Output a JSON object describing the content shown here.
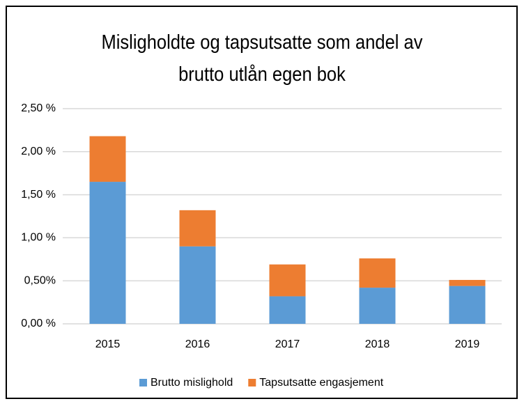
{
  "chart_data": {
    "type": "stacked_bar",
    "title": "Misligholdte og tapsutsatte som andel av brutto utlån egen bok",
    "categories": [
      "2015",
      "2016",
      "2017",
      "2018",
      "2019"
    ],
    "series": [
      {
        "name": "Brutto mislighold",
        "color": "#5b9bd5",
        "values": [
          1.65,
          0.9,
          0.32,
          0.42,
          0.44
        ]
      },
      {
        "name": "Tapsutsatte engasjement",
        "color": "#ed7d31",
        "values": [
          0.53,
          0.42,
          0.37,
          0.34,
          0.07
        ]
      }
    ],
    "ylim": [
      0,
      2.5
    ],
    "yticks": [
      {
        "value": 0,
        "label": "0,00 %"
      },
      {
        "value": 0.5,
        "label": "0,50%"
      },
      {
        "value": 1,
        "label": "1,00 %"
      },
      {
        "value": 1.5,
        "label": "1,50 %"
      },
      {
        "value": 2,
        "label": "2,00 %"
      },
      {
        "value": 2.5,
        "label": "2,50 %"
      }
    ],
    "grid": true,
    "legend": "bottom"
  }
}
